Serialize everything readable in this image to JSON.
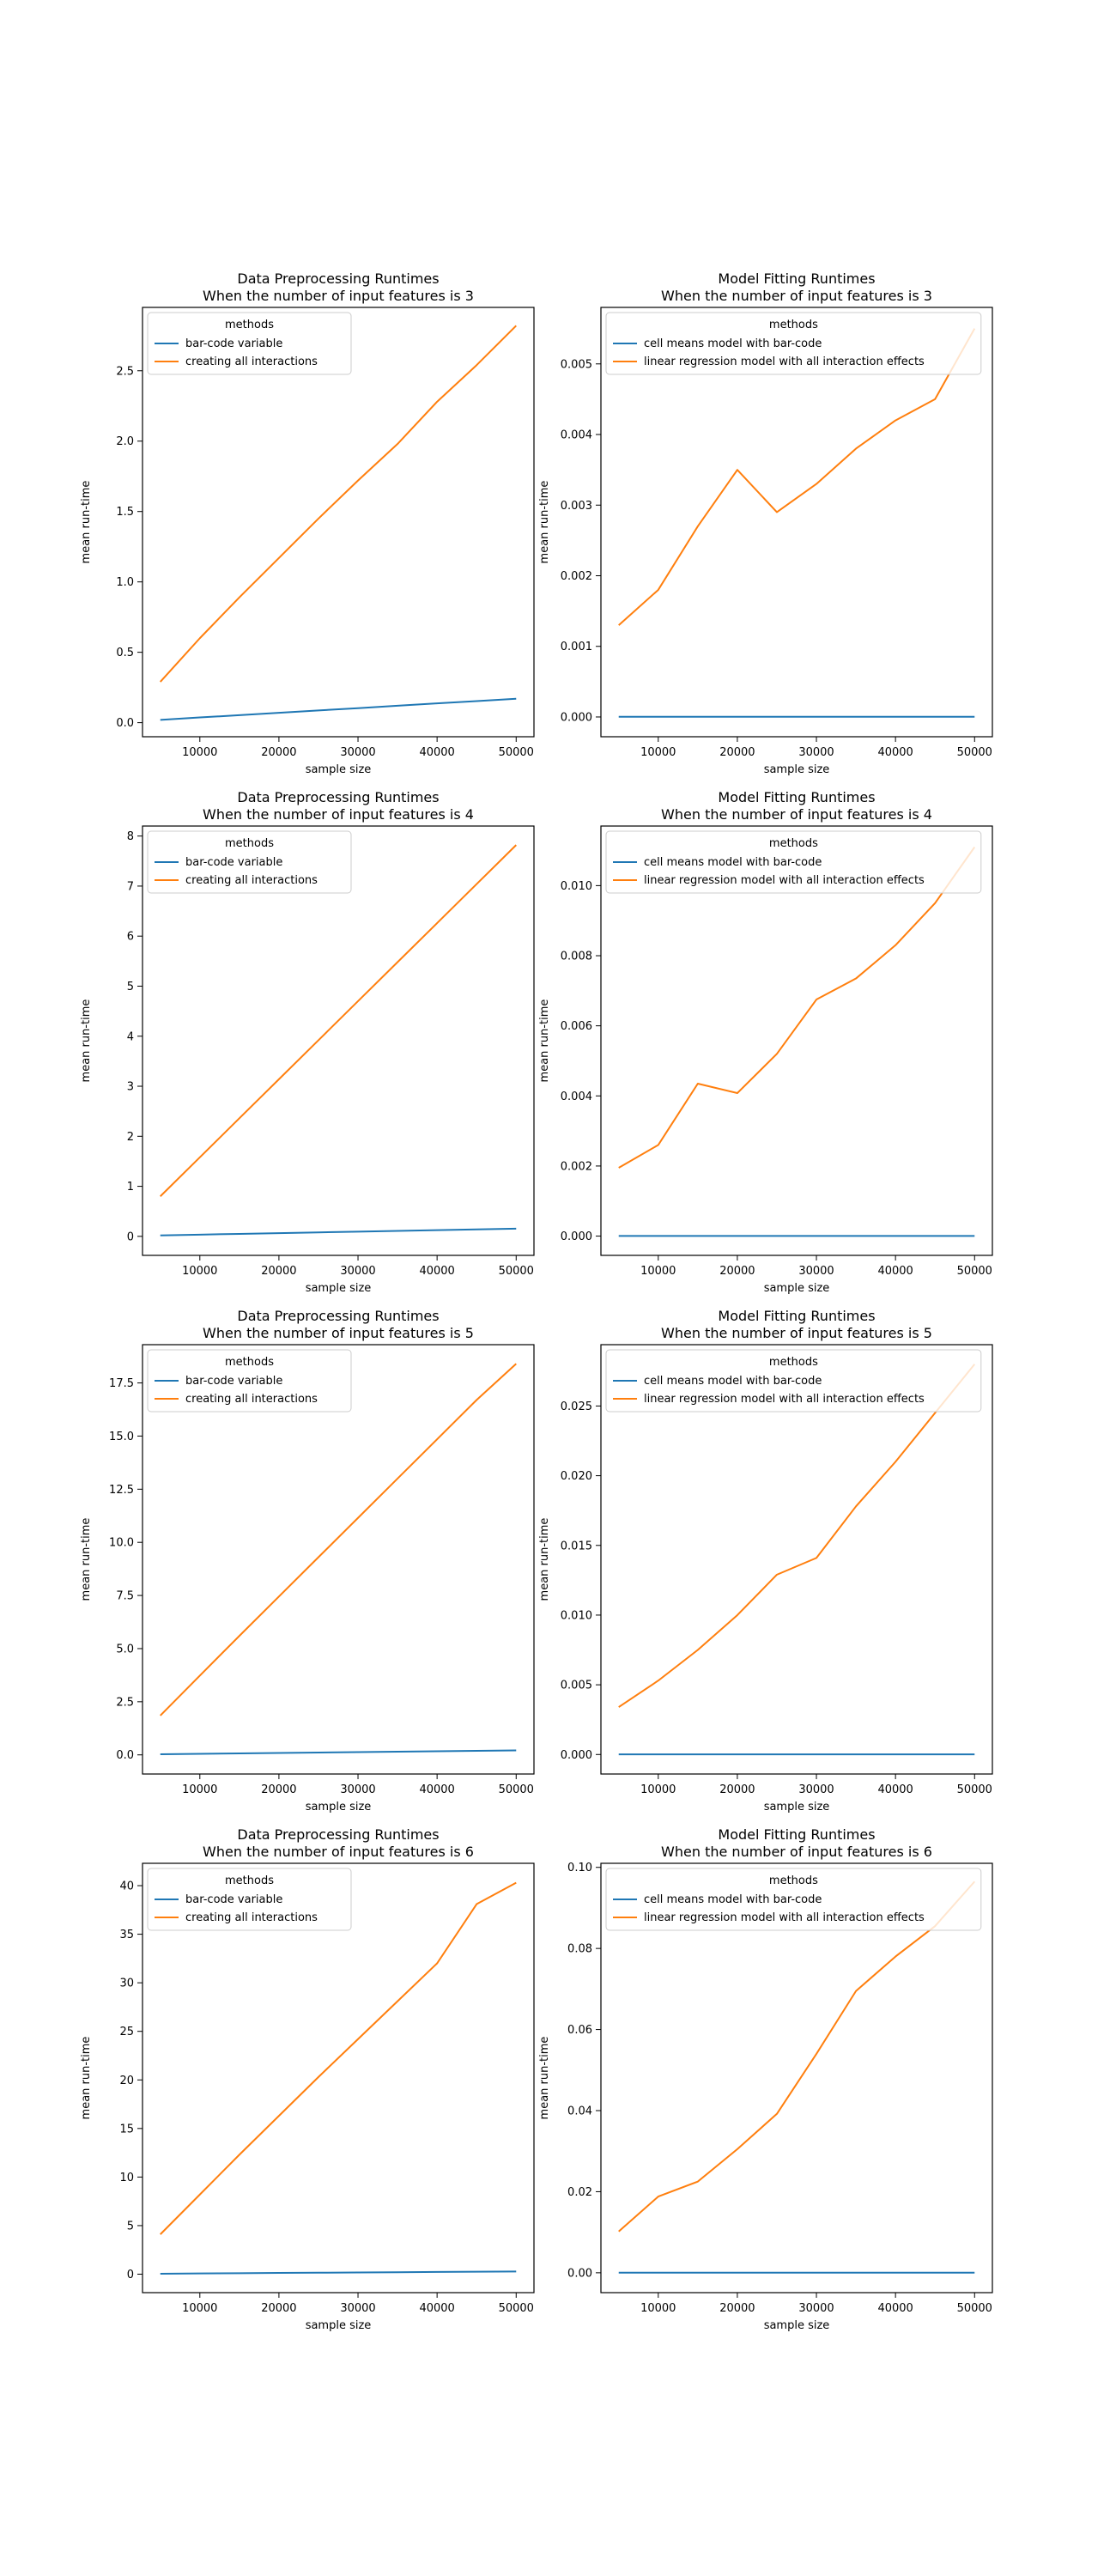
{
  "figure": {
    "background": "#ffffff"
  },
  "colors": {
    "series0": "#1f77b4",
    "series1": "#ff7f0e",
    "axes": "#000000"
  },
  "chart_data": [
    {
      "type": "line",
      "title": "Data Preprocessing Runtimes",
      "subtitle": "When the number of input features is 3",
      "xlabel": "sample size",
      "ylabel": "mean run-time",
      "xlim": [
        2750,
        52250
      ],
      "ylim": [
        -0.1,
        2.95
      ],
      "xticks": [
        10000,
        20000,
        30000,
        40000,
        50000
      ],
      "xtick_labels": [
        "10000",
        "20000",
        "30000",
        "40000",
        "50000"
      ],
      "yticks": [
        0,
        0.5,
        1.0,
        1.5,
        2.0,
        2.5
      ],
      "ytick_labels": [
        "0.0",
        "0.5",
        "1.0",
        "1.5",
        "2.0",
        "2.5"
      ],
      "grid": false,
      "legend": {
        "title": "methods",
        "position": "upper-left"
      },
      "x": [
        5000,
        10000,
        15000,
        20000,
        25000,
        30000,
        35000,
        40000,
        45000,
        50000
      ],
      "series": [
        {
          "name": "bar-code variable",
          "values": [
            0.02,
            0.037,
            0.053,
            0.07,
            0.087,
            0.103,
            0.12,
            0.137,
            0.153,
            0.17
          ]
        },
        {
          "name": "creating all interactions",
          "values": [
            0.29,
            0.6,
            0.89,
            1.17,
            1.45,
            1.72,
            1.98,
            2.28,
            2.54,
            2.82
          ]
        }
      ]
    },
    {
      "type": "line",
      "title": "Model Fitting Runtimes",
      "subtitle": "When the number of input features is 3",
      "xlabel": "sample size",
      "ylabel": "mean run-time",
      "xlim": [
        2750,
        52250
      ],
      "ylim": [
        -0.00028,
        0.0058
      ],
      "xticks": [
        10000,
        20000,
        30000,
        40000,
        50000
      ],
      "xtick_labels": [
        "10000",
        "20000",
        "30000",
        "40000",
        "50000"
      ],
      "yticks": [
        0,
        0.001,
        0.002,
        0.003,
        0.004,
        0.005
      ],
      "ytick_labels": [
        "0.000",
        "0.001",
        "0.002",
        "0.003",
        "0.004",
        "0.005"
      ],
      "grid": false,
      "legend": {
        "title": "methods",
        "position": "upper-left"
      },
      "x": [
        5000,
        10000,
        15000,
        20000,
        25000,
        30000,
        35000,
        40000,
        45000,
        50000
      ],
      "series": [
        {
          "name": "cell means model with bar-code",
          "values": [
            3e-06,
            3e-06,
            3e-06,
            3e-06,
            3e-06,
            3e-06,
            3e-06,
            3e-06,
            3e-06,
            3e-06
          ]
        },
        {
          "name": "linear regression model with all interaction effects",
          "values": [
            0.0013,
            0.0018,
            0.0027,
            0.0035,
            0.0029,
            0.0033,
            0.0038,
            0.0042,
            0.0045,
            0.0055
          ]
        }
      ]
    },
    {
      "type": "line",
      "title": "Data Preprocessing Runtimes",
      "subtitle": "When the number of input features is 4",
      "xlabel": "sample size",
      "ylabel": "mean run-time",
      "xlim": [
        2750,
        52250
      ],
      "ylim": [
        -0.38,
        8.2
      ],
      "xticks": [
        10000,
        20000,
        30000,
        40000,
        50000
      ],
      "xtick_labels": [
        "10000",
        "20000",
        "30000",
        "40000",
        "50000"
      ],
      "yticks": [
        0,
        1,
        2,
        3,
        4,
        5,
        6,
        7,
        8
      ],
      "ytick_labels": [
        "0",
        "1",
        "2",
        "3",
        "4",
        "5",
        "6",
        "7",
        "8"
      ],
      "grid": false,
      "legend": {
        "title": "methods",
        "position": "upper-left"
      },
      "x": [
        5000,
        10000,
        15000,
        20000,
        25000,
        30000,
        35000,
        40000,
        45000,
        50000
      ],
      "series": [
        {
          "name": "bar-code variable",
          "values": [
            0.02,
            0.035,
            0.05,
            0.065,
            0.08,
            0.095,
            0.11,
            0.125,
            0.14,
            0.155
          ]
        },
        {
          "name": "creating all interactions",
          "values": [
            0.8,
            1.58,
            2.36,
            3.14,
            3.92,
            4.7,
            5.48,
            6.26,
            7.04,
            7.82
          ]
        }
      ]
    },
    {
      "type": "line",
      "title": "Model Fitting Runtimes",
      "subtitle": "When the number of input features is 4",
      "xlabel": "sample size",
      "ylabel": "mean run-time",
      "xlim": [
        2750,
        52250
      ],
      "ylim": [
        -0.00055,
        0.0117
      ],
      "xticks": [
        10000,
        20000,
        30000,
        40000,
        50000
      ],
      "xtick_labels": [
        "10000",
        "20000",
        "30000",
        "40000",
        "50000"
      ],
      "yticks": [
        0,
        0.002,
        0.004,
        0.006,
        0.008,
        0.01
      ],
      "ytick_labels": [
        "0.000",
        "0.002",
        "0.004",
        "0.006",
        "0.008",
        "0.010"
      ],
      "grid": false,
      "legend": {
        "title": "methods",
        "position": "upper-left"
      },
      "x": [
        5000,
        10000,
        15000,
        20000,
        25000,
        30000,
        35000,
        40000,
        45000,
        50000
      ],
      "series": [
        {
          "name": "cell means model with bar-code",
          "values": [
            4e-06,
            4e-06,
            4e-06,
            4e-06,
            4e-06,
            4e-06,
            4e-06,
            4e-06,
            4e-06,
            4e-06
          ]
        },
        {
          "name": "linear regression model with all interaction effects",
          "values": [
            0.00195,
            0.0026,
            0.00435,
            0.00408,
            0.0052,
            0.00675,
            0.00735,
            0.0083,
            0.0095,
            0.0111
          ]
        }
      ]
    },
    {
      "type": "line",
      "title": "Data Preprocessing Runtimes",
      "subtitle": "When the number of input features is 5",
      "xlabel": "sample size",
      "ylabel": "mean run-time",
      "xlim": [
        2750,
        52250
      ],
      "ylim": [
        -0.9,
        19.3
      ],
      "xticks": [
        10000,
        20000,
        30000,
        40000,
        50000
      ],
      "xtick_labels": [
        "10000",
        "20000",
        "30000",
        "40000",
        "50000"
      ],
      "yticks": [
        0,
        2.5,
        5.0,
        7.5,
        10.0,
        12.5,
        15.0,
        17.5
      ],
      "ytick_labels": [
        "0.0",
        "2.5",
        "5.0",
        "7.5",
        "10.0",
        "12.5",
        "15.0",
        "17.5"
      ],
      "grid": false,
      "legend": {
        "title": "methods",
        "position": "upper-left"
      },
      "x": [
        5000,
        10000,
        15000,
        20000,
        25000,
        30000,
        35000,
        40000,
        45000,
        50000
      ],
      "series": [
        {
          "name": "bar-code variable",
          "values": [
            0.03,
            0.05,
            0.07,
            0.09,
            0.11,
            0.13,
            0.15,
            0.17,
            0.19,
            0.21
          ]
        },
        {
          "name": "creating all interactions",
          "values": [
            1.85,
            3.73,
            5.6,
            7.45,
            9.3,
            11.15,
            13.0,
            14.85,
            16.7,
            18.4
          ]
        }
      ]
    },
    {
      "type": "line",
      "title": "Model Fitting Runtimes",
      "subtitle": "When the number of input features is 5",
      "xlabel": "sample size",
      "ylabel": "mean run-time",
      "xlim": [
        2750,
        52250
      ],
      "ylim": [
        -0.0014,
        0.0294
      ],
      "xticks": [
        10000,
        20000,
        30000,
        40000,
        50000
      ],
      "xtick_labels": [
        "10000",
        "20000",
        "30000",
        "40000",
        "50000"
      ],
      "yticks": [
        0,
        0.005,
        0.01,
        0.015,
        0.02,
        0.025
      ],
      "ytick_labels": [
        "0.000",
        "0.005",
        "0.010",
        "0.015",
        "0.020",
        "0.025"
      ],
      "grid": false,
      "legend": {
        "title": "methods",
        "position": "upper-left"
      },
      "x": [
        5000,
        10000,
        15000,
        20000,
        25000,
        30000,
        35000,
        40000,
        45000,
        50000
      ],
      "series": [
        {
          "name": "cell means model with bar-code",
          "values": [
            1e-05,
            1e-05,
            1e-05,
            1e-05,
            1e-05,
            1e-05,
            1e-05,
            1e-05,
            1e-05,
            1e-05
          ]
        },
        {
          "name": "linear regression model with all interaction effects",
          "values": [
            0.0034,
            0.0053,
            0.0075,
            0.01,
            0.0129,
            0.0141,
            0.0178,
            0.021,
            0.0245,
            0.028
          ]
        }
      ]
    },
    {
      "type": "line",
      "title": "Data Preprocessing Runtimes",
      "subtitle": "When the number of input features is 6",
      "xlabel": "sample size",
      "ylabel": "mean run-time",
      "xlim": [
        2750,
        52250
      ],
      "ylim": [
        -1.9,
        42.3
      ],
      "xticks": [
        10000,
        20000,
        30000,
        40000,
        50000
      ],
      "xtick_labels": [
        "10000",
        "20000",
        "30000",
        "40000",
        "50000"
      ],
      "yticks": [
        0,
        5,
        10,
        15,
        20,
        25,
        30,
        35,
        40
      ],
      "ytick_labels": [
        "0",
        "5",
        "10",
        "15",
        "20",
        "25",
        "30",
        "35",
        "40"
      ],
      "grid": false,
      "legend": {
        "title": "methods",
        "position": "upper-left"
      },
      "x": [
        5000,
        10000,
        15000,
        20000,
        25000,
        30000,
        35000,
        40000,
        45000,
        50000
      ],
      "series": [
        {
          "name": "bar-code variable",
          "values": [
            0.05,
            0.08,
            0.1,
            0.13,
            0.15,
            0.18,
            0.2,
            0.23,
            0.25,
            0.28
          ]
        },
        {
          "name": "creating all interactions",
          "values": [
            4.1,
            8.2,
            12.3,
            16.3,
            20.3,
            24.2,
            28.1,
            32.0,
            38.1,
            40.3
          ]
        }
      ]
    },
    {
      "type": "line",
      "title": "Model Fitting Runtimes",
      "subtitle": "When the number of input features is 6",
      "xlabel": "sample size",
      "ylabel": "mean run-time",
      "xlim": [
        2750,
        52250
      ],
      "ylim": [
        -0.0049,
        0.101
      ],
      "xticks": [
        10000,
        20000,
        30000,
        40000,
        50000
      ],
      "xtick_labels": [
        "10000",
        "20000",
        "30000",
        "40000",
        "50000"
      ],
      "yticks": [
        0,
        0.02,
        0.04,
        0.06,
        0.08,
        0.1
      ],
      "ytick_labels": [
        "0.00",
        "0.02",
        "0.04",
        "0.06",
        "0.08",
        "0.10"
      ],
      "grid": false,
      "legend": {
        "title": "methods",
        "position": "upper-left"
      },
      "x": [
        5000,
        10000,
        15000,
        20000,
        25000,
        30000,
        35000,
        40000,
        45000,
        50000
      ],
      "series": [
        {
          "name": "cell means model with bar-code",
          "values": [
            2e-05,
            2e-05,
            2e-05,
            2e-05,
            2e-05,
            2e-05,
            2e-05,
            2e-05,
            2e-05,
            2e-05
          ]
        },
        {
          "name": "linear regression model with all interaction effects",
          "values": [
            0.0102,
            0.0188,
            0.0225,
            0.0305,
            0.0392,
            0.054,
            0.0695,
            0.078,
            0.0855,
            0.0965
          ]
        }
      ]
    }
  ]
}
